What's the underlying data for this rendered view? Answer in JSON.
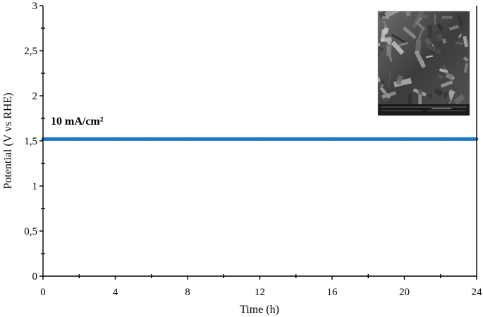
{
  "chart_data": {
    "type": "line",
    "title": "",
    "xlabel": "Time (h)",
    "ylabel": "Potential (V vs RHE)",
    "xlim": [
      0,
      24
    ],
    "ylim": [
      0,
      3
    ],
    "x_ticks": [
      0,
      4,
      8,
      12,
      16,
      20,
      24
    ],
    "x_tick_labels": [
      "0",
      "4",
      "8",
      "12",
      "16",
      "20",
      "24"
    ],
    "y_ticks": [
      0,
      0.5,
      1,
      1.5,
      2,
      2.5,
      3
    ],
    "y_tick_labels": [
      "0",
      "0,5",
      "1",
      "1,5",
      "2",
      "2,5",
      "3"
    ],
    "annotation": "10 mA/cm²",
    "grid": false,
    "legend": "none",
    "inset": "SEM micrograph (top-right)",
    "series": [
      {
        "color": "#1f77c4",
        "x": [
          0,
          2,
          4,
          6,
          8,
          10,
          12,
          14,
          16,
          18,
          20,
          22,
          24
        ],
        "y": [
          1.52,
          1.52,
          1.52,
          1.52,
          1.52,
          1.52,
          1.52,
          1.52,
          1.52,
          1.52,
          1.52,
          1.52,
          1.52
        ]
      }
    ]
  }
}
